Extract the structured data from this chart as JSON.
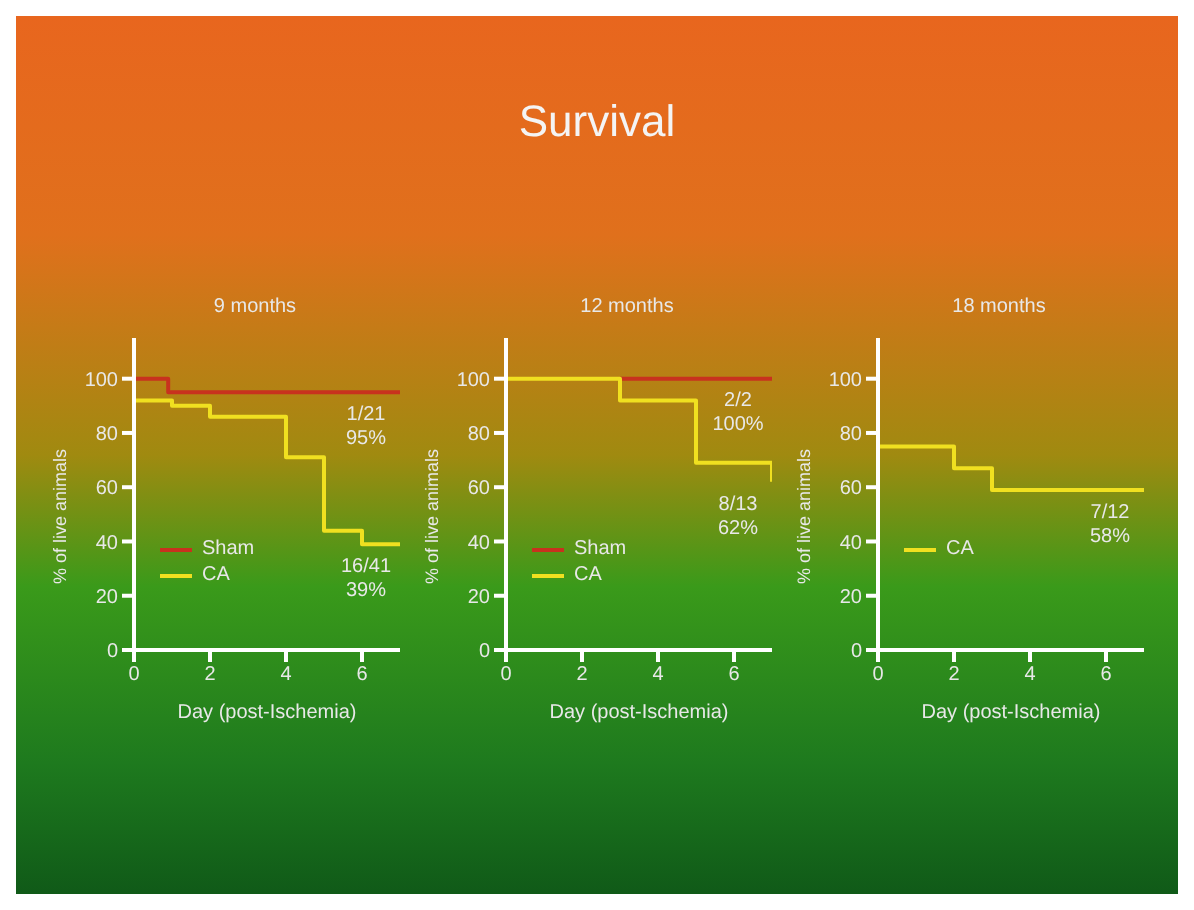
{
  "chart_data": [
    {
      "type": "other",
      "title": "Survival"
    },
    {
      "type": "step",
      "title": "9 months",
      "xlabel": "Day (post-Ischemia)",
      "ylabel": "% of live animals",
      "xlim": [
        0,
        7
      ],
      "xticks": [
        0,
        2,
        4,
        6
      ],
      "ylim": [
        0,
        115
      ],
      "yticks": [
        0,
        20,
        40,
        60,
        80,
        100
      ],
      "legend": "left",
      "marker": "none",
      "grid": false,
      "series": [
        {
          "name": "Sham",
          "color": "#c8321e",
          "x": [
            0,
            0.9,
            7
          ],
          "values": [
            100,
            95,
            95
          ]
        },
        {
          "name": "CA",
          "color": "#f0e020",
          "x": [
            0,
            1,
            2,
            4,
            5,
            6,
            7
          ],
          "values": [
            92,
            90,
            86,
            71,
            44,
            39,
            39
          ]
        }
      ],
      "annotations": [
        "1/21 95%",
        "16/41 39%"
      ]
    },
    {
      "type": "step",
      "title": "12 months",
      "xlabel": "Day (post-Ischemia)",
      "ylabel": "% of live animals",
      "xlim": [
        0,
        7
      ],
      "xticks": [
        0,
        2,
        4,
        6
      ],
      "ylim": [
        0,
        115
      ],
      "yticks": [
        0,
        20,
        40,
        60,
        80,
        100
      ],
      "legend": "left",
      "marker": "none",
      "grid": false,
      "series": [
        {
          "name": "Sham",
          "color": "#c8321e",
          "x": [
            3,
            7
          ],
          "values": [
            100,
            100
          ]
        },
        {
          "name": "CA",
          "color": "#f0e020",
          "x": [
            0,
            3,
            5,
            7
          ],
          "values": [
            100,
            92,
            69,
            62
          ]
        }
      ],
      "annotations": [
        "2/2 100%",
        "8/13 62%"
      ]
    },
    {
      "type": "step",
      "title": "18 months",
      "xlabel": "Day (post-Ischemia)",
      "ylabel": "% of live animals",
      "xlim": [
        0,
        7
      ],
      "xticks": [
        0,
        2,
        4,
        6
      ],
      "ylim": [
        0,
        115
      ],
      "yticks": [
        0,
        20,
        40,
        60,
        80,
        100
      ],
      "legend": "left",
      "marker": "none",
      "grid": false,
      "series": [
        {
          "name": "CA",
          "color": "#f0e020",
          "x": [
            0,
            0,
            2,
            3,
            7
          ],
          "values": [
            100,
            75,
            67,
            59,
            59
          ]
        }
      ],
      "annotations": [
        "7/12 58%"
      ]
    }
  ]
}
